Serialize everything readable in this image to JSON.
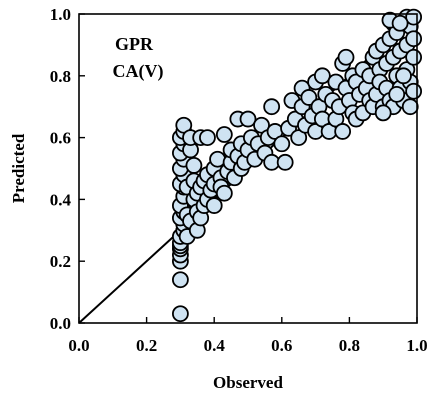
{
  "chart_data": {
    "type": "scatter",
    "xlabel": "Observed",
    "ylabel": "Predicted",
    "xlim": [
      0.0,
      1.0
    ],
    "ylim": [
      0.0,
      1.0
    ],
    "xticks": [
      "0.0",
      "0.2",
      "0.4",
      "0.6",
      "0.8",
      "1.0"
    ],
    "yticks": [
      "0.0",
      "0.2",
      "0.4",
      "0.6",
      "0.8",
      "1.0"
    ],
    "annotations": [
      "GPR",
      "CA(V)"
    ],
    "grid": false,
    "reference_line": {
      "x": [
        0,
        1
      ],
      "y": [
        0,
        1
      ],
      "color": "#000000"
    },
    "marker_fill": "#cfe3f2",
    "marker_edge": "#000000",
    "points": [
      [
        0.3,
        0.03
      ],
      [
        0.3,
        0.14
      ],
      [
        0.3,
        0.2
      ],
      [
        0.3,
        0.22
      ],
      [
        0.3,
        0.24
      ],
      [
        0.3,
        0.25
      ],
      [
        0.3,
        0.26
      ],
      [
        0.3,
        0.28
      ],
      [
        0.31,
        0.3
      ],
      [
        0.31,
        0.32
      ],
      [
        0.3,
        0.34
      ],
      [
        0.31,
        0.36
      ],
      [
        0.3,
        0.38
      ],
      [
        0.31,
        0.41
      ],
      [
        0.31,
        0.44
      ],
      [
        0.3,
        0.45
      ],
      [
        0.31,
        0.48
      ],
      [
        0.3,
        0.5
      ],
      [
        0.31,
        0.53
      ],
      [
        0.3,
        0.55
      ],
      [
        0.31,
        0.58
      ],
      [
        0.3,
        0.6
      ],
      [
        0.31,
        0.62
      ],
      [
        0.31,
        0.64
      ],
      [
        0.32,
        0.44
      ],
      [
        0.32,
        0.28
      ],
      [
        0.32,
        0.35
      ],
      [
        0.33,
        0.33
      ],
      [
        0.33,
        0.56
      ],
      [
        0.33,
        0.6
      ],
      [
        0.34,
        0.51
      ],
      [
        0.34,
        0.4
      ],
      [
        0.34,
        0.46
      ],
      [
        0.35,
        0.3
      ],
      [
        0.35,
        0.36
      ],
      [
        0.35,
        0.42
      ],
      [
        0.36,
        0.6
      ],
      [
        0.36,
        0.44
      ],
      [
        0.36,
        0.34
      ],
      [
        0.37,
        0.38
      ],
      [
        0.37,
        0.46
      ],
      [
        0.38,
        0.4
      ],
      [
        0.38,
        0.6
      ],
      [
        0.38,
        0.48
      ],
      [
        0.39,
        0.43
      ],
      [
        0.4,
        0.45
      ],
      [
        0.4,
        0.38
      ],
      [
        0.4,
        0.5
      ],
      [
        0.41,
        0.53
      ],
      [
        0.42,
        0.47
      ],
      [
        0.42,
        0.44
      ],
      [
        0.43,
        0.42
      ],
      [
        0.43,
        0.61
      ],
      [
        0.44,
        0.49
      ],
      [
        0.45,
        0.52
      ],
      [
        0.45,
        0.56
      ],
      [
        0.46,
        0.47
      ],
      [
        0.47,
        0.66
      ],
      [
        0.47,
        0.54
      ],
      [
        0.48,
        0.5
      ],
      [
        0.48,
        0.58
      ],
      [
        0.49,
        0.52
      ],
      [
        0.5,
        0.66
      ],
      [
        0.5,
        0.56
      ],
      [
        0.51,
        0.6
      ],
      [
        0.52,
        0.53
      ],
      [
        0.53,
        0.58
      ],
      [
        0.54,
        0.64
      ],
      [
        0.55,
        0.55
      ],
      [
        0.56,
        0.6
      ],
      [
        0.57,
        0.7
      ],
      [
        0.57,
        0.52
      ],
      [
        0.58,
        0.62
      ],
      [
        0.6,
        0.58
      ],
      [
        0.61,
        0.52
      ],
      [
        0.62,
        0.63
      ],
      [
        0.63,
        0.72
      ],
      [
        0.64,
        0.66
      ],
      [
        0.65,
        0.6
      ],
      [
        0.66,
        0.76
      ],
      [
        0.66,
        0.7
      ],
      [
        0.67,
        0.64
      ],
      [
        0.68,
        0.73
      ],
      [
        0.69,
        0.67
      ],
      [
        0.7,
        0.62
      ],
      [
        0.7,
        0.78
      ],
      [
        0.71,
        0.7
      ],
      [
        0.72,
        0.66
      ],
      [
        0.72,
        0.8
      ],
      [
        0.73,
        0.74
      ],
      [
        0.74,
        0.62
      ],
      [
        0.75,
        0.72
      ],
      [
        0.76,
        0.78
      ],
      [
        0.76,
        0.66
      ],
      [
        0.77,
        0.7
      ],
      [
        0.78,
        0.62
      ],
      [
        0.78,
        0.84
      ],
      [
        0.79,
        0.76
      ],
      [
        0.79,
        0.86
      ],
      [
        0.8,
        0.72
      ],
      [
        0.81,
        0.68
      ],
      [
        0.81,
        0.8
      ],
      [
        0.82,
        0.66
      ],
      [
        0.82,
        0.78
      ],
      [
        0.83,
        0.74
      ],
      [
        0.84,
        0.82
      ],
      [
        0.84,
        0.68
      ],
      [
        0.85,
        0.76
      ],
      [
        0.86,
        0.72
      ],
      [
        0.86,
        0.8
      ],
      [
        0.87,
        0.86
      ],
      [
        0.87,
        0.7
      ],
      [
        0.88,
        0.88
      ],
      [
        0.88,
        0.74
      ],
      [
        0.89,
        0.82
      ],
      [
        0.89,
        0.78
      ],
      [
        0.9,
        0.9
      ],
      [
        0.9,
        0.7
      ],
      [
        0.91,
        0.84
      ],
      [
        0.91,
        0.76
      ],
      [
        0.92,
        0.92
      ],
      [
        0.92,
        0.72
      ],
      [
        0.93,
        0.97
      ],
      [
        0.93,
        0.86
      ],
      [
        0.93,
        0.7
      ],
      [
        0.94,
        0.8
      ],
      [
        0.94,
        0.94
      ],
      [
        0.95,
        0.76
      ],
      [
        0.95,
        0.88
      ],
      [
        0.96,
        0.97
      ],
      [
        0.96,
        0.72
      ],
      [
        0.97,
        0.99
      ],
      [
        0.97,
        0.9
      ],
      [
        0.97,
        0.82
      ],
      [
        0.98,
        0.78
      ],
      [
        0.98,
        0.96
      ],
      [
        0.99,
        0.86
      ],
      [
        0.99,
        0.92
      ],
      [
        0.99,
        0.99
      ],
      [
        0.99,
        0.75
      ],
      [
        0.98,
        0.7
      ],
      [
        0.96,
        0.8
      ],
      [
        0.94,
        0.74
      ],
      [
        0.92,
        0.98
      ],
      [
        0.95,
        0.97
      ],
      [
        0.9,
        0.68
      ]
    ]
  }
}
